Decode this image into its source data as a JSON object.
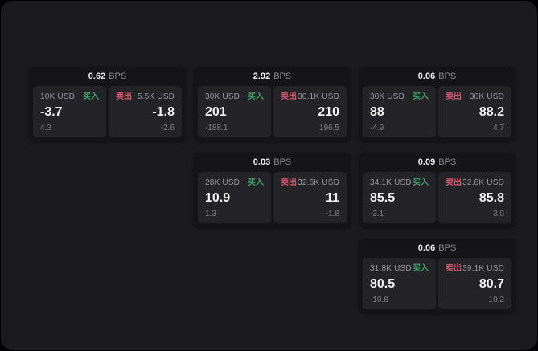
{
  "labels": {
    "bps_suffix": "BPS",
    "buy": "买入",
    "sell": "卖出"
  },
  "colors": {
    "buy": "#3fa46a",
    "sell": "#d4566c",
    "panel_bg": "#1b1b1d",
    "card_bg": "#151517",
    "tile_bg": "#242428"
  },
  "cards": [
    {
      "row": 0,
      "col": 0,
      "bps": "0.62",
      "buy": {
        "amount": "10K USD",
        "value": "-3.7",
        "sub": "4.3"
      },
      "sell": {
        "amount": "5.5K USD",
        "value": "-1.8",
        "sub": "-2.6"
      }
    },
    {
      "row": 0,
      "col": 1,
      "bps": "2.92",
      "buy": {
        "amount": "30K USD",
        "value": "201",
        "sub": "-188.1"
      },
      "sell": {
        "amount": "30.1K USD",
        "value": "210",
        "sub": "196.5"
      }
    },
    {
      "row": 0,
      "col": 2,
      "bps": "0.06",
      "buy": {
        "amount": "30K USD",
        "value": "88",
        "sub": "-4.9"
      },
      "sell": {
        "amount": "30K USD",
        "value": "88.2",
        "sub": "4.7"
      }
    },
    {
      "row": 1,
      "col": 1,
      "bps": "0.03",
      "buy": {
        "amount": "28K USD",
        "value": "10.9",
        "sub": "1.3"
      },
      "sell": {
        "amount": "32.6K USD",
        "value": "11",
        "sub": "-1.8"
      }
    },
    {
      "row": 1,
      "col": 2,
      "bps": "0.09",
      "buy": {
        "amount": "34.1K USD",
        "value": "85.5",
        "sub": "-3.1"
      },
      "sell": {
        "amount": "32.8K USD",
        "value": "85.8",
        "sub": "3.0"
      }
    },
    {
      "row": 2,
      "col": 2,
      "bps": "0.06",
      "buy": {
        "amount": "31.8K USD",
        "value": "80.5",
        "sub": "-10.8"
      },
      "sell": {
        "amount": "39.1K USD",
        "value": "80.7",
        "sub": "10.2"
      }
    }
  ]
}
